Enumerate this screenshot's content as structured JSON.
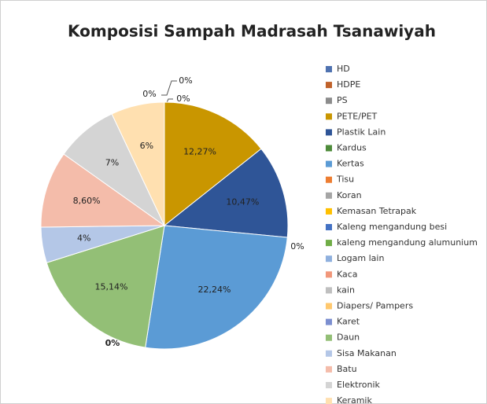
{
  "chart_data": {
    "type": "pie",
    "title": "Komposisi Sampah Madrasah Tsanawiyah",
    "categories": [
      "HD",
      "HDPE",
      "PS",
      "PETE/PET",
      "Plastik Lain",
      "Kardus",
      "Kertas",
      "Tisu",
      "Koran",
      "Kemasan Tetrapak",
      "Kaleng mengandung besi",
      "kaleng mengandung alumunium",
      "Logam lain",
      "Kaca",
      "kain",
      "Diapers/ Pampers",
      "Karet",
      "Daun",
      "Sisa Makanan",
      "Batu",
      "Elektronik",
      "Keramik"
    ],
    "values": [
      0,
      0,
      0,
      12.27,
      10.47,
      0,
      22.24,
      0,
      0,
      0,
      0,
      0,
      0,
      0,
      0,
      0,
      0,
      15.14,
      4,
      8.6,
      7,
      6
    ],
    "value_labels": [
      "0%",
      "0%",
      "0%",
      "12,27%",
      "10,47%",
      "0%",
      "22,24%",
      null,
      "0%",
      null,
      null,
      null,
      null,
      null,
      null,
      null,
      null,
      "15,14%",
      "4%",
      "8,60%",
      "7%",
      "6%"
    ],
    "colors": [
      "#4f72b0",
      "#c0622b",
      "#8c8c8c",
      "#c99600",
      "#2f5597",
      "#4e8b3a",
      "#5b9bd5",
      "#ed7d31",
      "#a5a5a5",
      "#ffc000",
      "#4472c4",
      "#70ad47",
      "#8fb0de",
      "#f1977a",
      "#bfbfbf",
      "#ffc86e",
      "#7c8fd0",
      "#93bf76",
      "#b4c7e7",
      "#f4bcaa",
      "#d4d4d4",
      "#ffe0b0"
    ],
    "legend": "right"
  }
}
